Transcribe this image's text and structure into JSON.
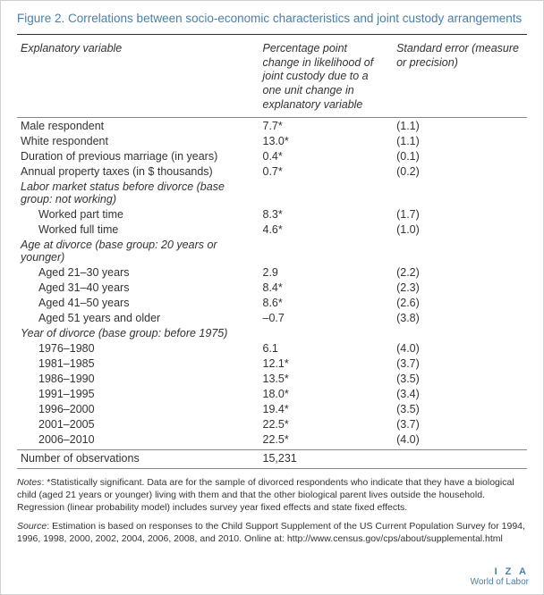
{
  "title": "Figure 2. Correlations between socio-economic characteristics and joint custody arrangements",
  "headers": {
    "var": "Explanatory variable",
    "val": "Percentage point change in likelihood of joint custody due to a one unit change in explanatory variable",
    "se": "Standard error (measure or precision)"
  },
  "rows": [
    {
      "label": "Male respondent",
      "val": "7.7*",
      "se": "(1.1)",
      "type": "plain"
    },
    {
      "label": "White respondent",
      "val": "13.0*",
      "se": "(1.1)",
      "type": "plain"
    },
    {
      "label": "Duration of previous marriage (in years)",
      "val": "0.4*",
      "se": "(0.1)",
      "type": "plain"
    },
    {
      "label": "Annual property taxes (in $ thousands)",
      "val": "0.7*",
      "se": "(0.2)",
      "type": "plain"
    },
    {
      "label": "Labor market status before divorce (base group: not working)",
      "val": "",
      "se": "",
      "type": "group"
    },
    {
      "label": "Worked part time",
      "val": "8.3*",
      "se": "(1.7)",
      "type": "indent"
    },
    {
      "label": "Worked full time",
      "val": "4.6*",
      "se": "(1.0)",
      "type": "indent"
    },
    {
      "label": "Age at divorce (base group: 20 years or younger)",
      "val": "",
      "se": "",
      "type": "group"
    },
    {
      "label": "Aged 21–30 years",
      "val": "2.9",
      "se": "(2.2)",
      "type": "indent"
    },
    {
      "label": "Aged 31–40 years",
      "val": "8.4*",
      "se": "(2.3)",
      "type": "indent"
    },
    {
      "label": "Aged 41–50 years",
      "val": "8.6*",
      "se": "(2.6)",
      "type": "indent"
    },
    {
      "label": "Aged 51 years and older",
      "val": "–0.7",
      "se": "(3.8)",
      "type": "indent"
    },
    {
      "label": "Year of divorce (base group: before 1975)",
      "val": "",
      "se": "",
      "type": "group"
    },
    {
      "label": "1976–1980",
      "val": "6.1",
      "se": "(4.0)",
      "type": "indent"
    },
    {
      "label": "1981–1985",
      "val": "12.1*",
      "se": "(3.7)",
      "type": "indent"
    },
    {
      "label": "1986–1990",
      "val": "13.5*",
      "se": "(3.5)",
      "type": "indent"
    },
    {
      "label": "1991–1995",
      "val": "18.0*",
      "se": "(3.4)",
      "type": "indent"
    },
    {
      "label": "1996–2000",
      "val": "19.4*",
      "se": "(3.5)",
      "type": "indent"
    },
    {
      "label": "2001–2005",
      "val": "22.5*",
      "se": "(3.7)",
      "type": "indent"
    },
    {
      "label": "2006–2010",
      "val": "22.5*",
      "se": "(4.0)",
      "type": "indent"
    }
  ],
  "obs": {
    "label": "Number of observations",
    "val": "15,231"
  },
  "notes_label": "Notes",
  "notes_text": ": *Statistically significant. Data are for the sample of divorced respondents who indicate that they have a biological child (aged 21 years or younger) living with them and that the other biological parent lives outside the household. Regression (linear probability model) includes survey year fixed effects and state fixed effects.",
  "source_label": "Source",
  "source_text": ": Estimation is based on responses to the Child Support Supplement of the US Current Population Survey for 1994, 1996, 1998, 2000, 2002, 2004, 2006, 2008, and 2010. Online at: http://www.census.gov/cps/about/supplemental.html",
  "logo": {
    "line1": "I Z A",
    "line2": "World of Labor"
  },
  "colors": {
    "title": "#4a7fa5",
    "text": "#333333",
    "rule": "#333333",
    "border": "#d0d0d0",
    "background": "#ffffff"
  },
  "font_sizes": {
    "title": 13.5,
    "body": 12.5,
    "notes": 10.5,
    "logo": 10
  }
}
